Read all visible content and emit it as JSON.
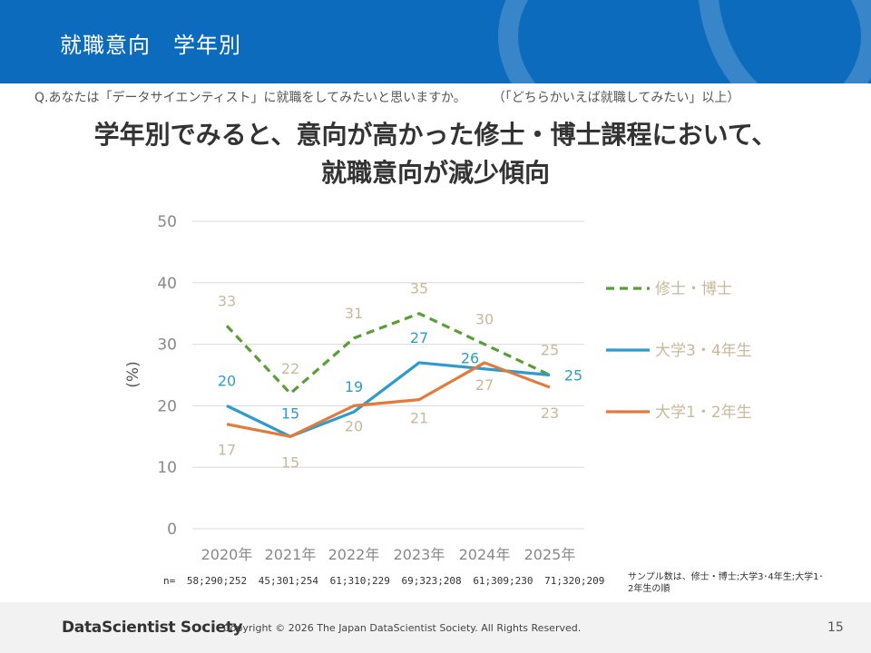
{
  "header": {
    "title": "就職意向　学年別"
  },
  "question": {
    "text": "Q.あなたは「データサイエンティスト」に就職をしてみたいと思いますか。",
    "note": "（「どちらかいえば就職してみたい」以上）"
  },
  "headline": {
    "line1": "学年別でみると、意向が高かった修士・博士課程において、",
    "line2": "就職意向が減少傾向"
  },
  "chart_data": {
    "type": "line",
    "x": [
      "2020年",
      "2021年",
      "2022年",
      "2023年",
      "2024年",
      "2025年"
    ],
    "ylabel": "(%)",
    "ylim": [
      0,
      50
    ],
    "yticks": [
      0,
      10,
      20,
      30,
      40,
      50
    ],
    "grid": true,
    "legend": "right",
    "series": [
      {
        "name": "修士・博士",
        "values": [
          33,
          22,
          31,
          35,
          30,
          25
        ],
        "color": "#5a9e3a",
        "dash": true
      },
      {
        "name": "大学3・4年生",
        "values": [
          20,
          15,
          19,
          27,
          26,
          25
        ],
        "color": "#2e9bcc",
        "dash": false
      },
      {
        "name": "大学1・2年生",
        "values": [
          17,
          15,
          20,
          21,
          27,
          23
        ],
        "color": "#e07b3c",
        "dash": false
      }
    ]
  },
  "n_row": {
    "label": "n=",
    "values": [
      "58;290;252",
      "45;301;254",
      "61;310;229",
      "69;323;208",
      "61;309;230",
      "71;320;209"
    ]
  },
  "sample_note": "サンプル数は、修士・博士;大学3･4年生;大学1･2年生の順",
  "footer": {
    "logo": "DataScientist Society",
    "copyright": "Copyright © 2026  The Japan DataScientist Society. All Rights Reserved.",
    "page": "15"
  }
}
